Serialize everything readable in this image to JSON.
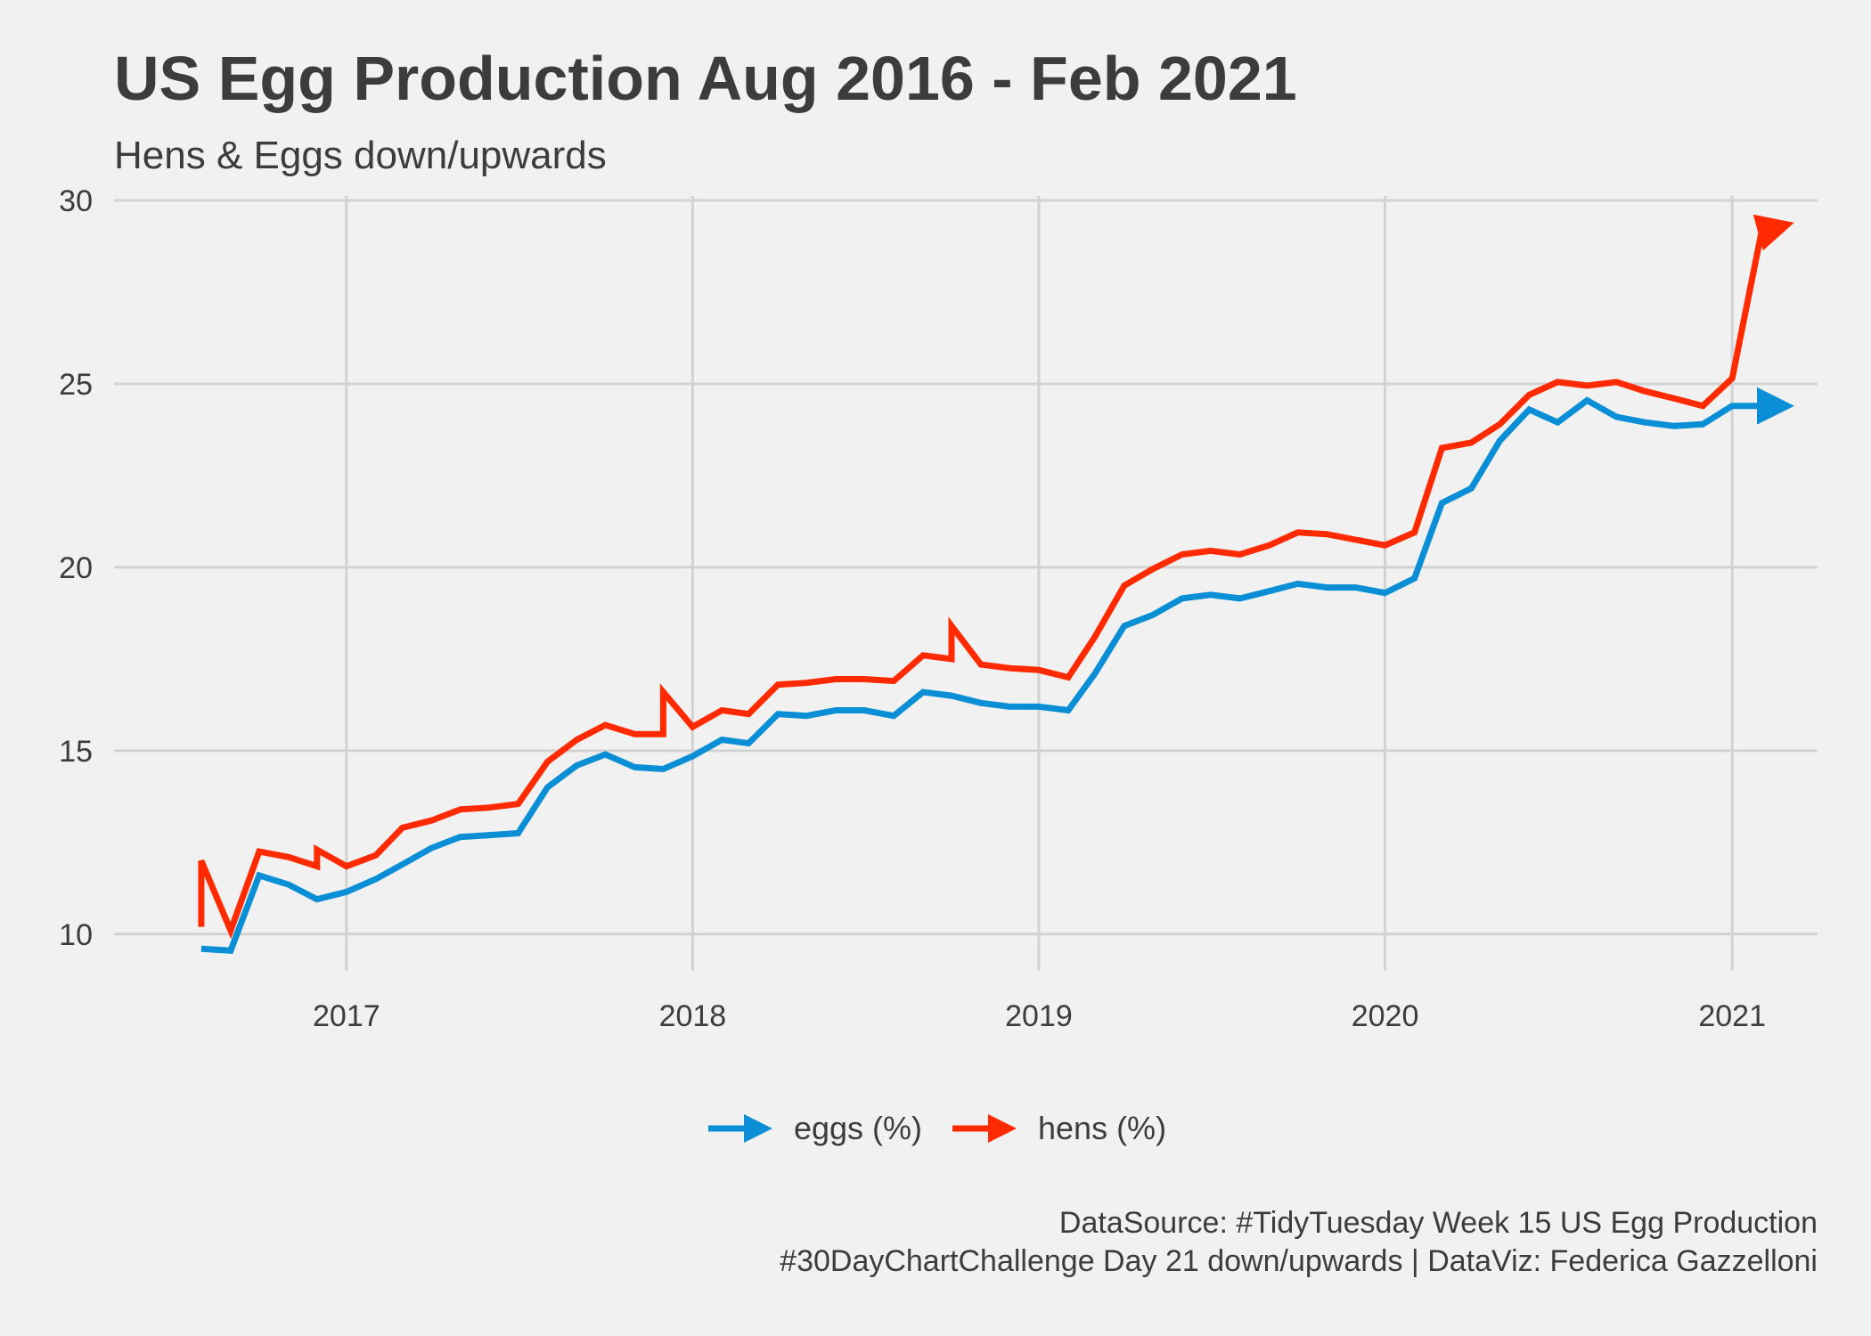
{
  "colors": {
    "eggs": "#0a8fd6",
    "hens": "#ff2a00",
    "grid": "#d2d2d2",
    "background": "#f1f1f1"
  },
  "chart_data": {
    "type": "line",
    "title": "US Egg Production Aug 2016 - Feb 2021",
    "subtitle": "Hens & Eggs down/upwards",
    "xlabel": "",
    "ylabel": "",
    "ylim": [
      9,
      30
    ],
    "yticks": [
      10,
      15,
      20,
      25,
      30
    ],
    "xlim": [
      "2016-05-01",
      "2021-04-01"
    ],
    "xticks": [
      "2017",
      "2018",
      "2019",
      "2020",
      "2021"
    ],
    "grid": true,
    "legend_position": "bottom",
    "series": [
      {
        "name": "eggs (%)",
        "color": "#0a8fd6",
        "arrow": "end",
        "points": [
          [
            "2016-08-01",
            9.6
          ],
          [
            "2016-09-01",
            9.55
          ],
          [
            "2016-10-01",
            11.6
          ],
          [
            "2016-11-01",
            11.35
          ],
          [
            "2016-12-01",
            10.95
          ],
          [
            "2017-01-01",
            11.15
          ],
          [
            "2017-02-01",
            11.5
          ],
          [
            "2017-03-01",
            11.9
          ],
          [
            "2017-04-01",
            12.35
          ],
          [
            "2017-05-01",
            12.65
          ],
          [
            "2017-06-01",
            12.7
          ],
          [
            "2017-07-01",
            12.75
          ],
          [
            "2017-08-01",
            14.0
          ],
          [
            "2017-09-01",
            14.6
          ],
          [
            "2017-10-01",
            14.9
          ],
          [
            "2017-11-01",
            14.55
          ],
          [
            "2017-12-01",
            14.5
          ],
          [
            "2018-01-01",
            14.85
          ],
          [
            "2018-02-01",
            15.3
          ],
          [
            "2018-03-01",
            15.2
          ],
          [
            "2018-04-01",
            16.0
          ],
          [
            "2018-05-01",
            15.95
          ],
          [
            "2018-06-01",
            16.1
          ],
          [
            "2018-07-01",
            16.1
          ],
          [
            "2018-08-01",
            15.95
          ],
          [
            "2018-09-01",
            16.6
          ],
          [
            "2018-10-01",
            16.5
          ],
          [
            "2018-11-01",
            16.3
          ],
          [
            "2018-12-01",
            16.2
          ],
          [
            "2019-01-01",
            16.2
          ],
          [
            "2019-02-01",
            16.1
          ],
          [
            "2019-03-01",
            17.1
          ],
          [
            "2019-04-01",
            18.4
          ],
          [
            "2019-05-01",
            18.7
          ],
          [
            "2019-06-01",
            19.15
          ],
          [
            "2019-07-01",
            19.25
          ],
          [
            "2019-08-01",
            19.15
          ],
          [
            "2019-09-01",
            19.35
          ],
          [
            "2019-10-01",
            19.55
          ],
          [
            "2019-11-01",
            19.45
          ],
          [
            "2019-12-01",
            19.45
          ],
          [
            "2020-01-01",
            19.3
          ],
          [
            "2020-02-01",
            19.7
          ],
          [
            "2020-03-01",
            21.75
          ],
          [
            "2020-04-01",
            22.15
          ],
          [
            "2020-05-01",
            23.45
          ],
          [
            "2020-06-01",
            24.3
          ],
          [
            "2020-07-01",
            23.95
          ],
          [
            "2020-08-01",
            24.55
          ],
          [
            "2020-09-01",
            24.1
          ],
          [
            "2020-10-01",
            23.95
          ],
          [
            "2020-11-01",
            23.85
          ],
          [
            "2020-12-01",
            23.9
          ],
          [
            "2021-01-01",
            24.4
          ],
          [
            "2021-02-01",
            24.4
          ],
          [
            "2021-03-01",
            24.4
          ]
        ]
      },
      {
        "name": "hens (%)",
        "color": "#ff2a00",
        "arrow": "end",
        "points": [
          [
            "2016-08-01",
            10.2
          ],
          [
            "2016-08-01",
            12.0
          ],
          [
            "2016-09-01",
            10.1
          ],
          [
            "2016-10-01",
            12.25
          ],
          [
            "2016-11-01",
            12.1
          ],
          [
            "2016-12-01",
            11.85
          ],
          [
            "2016-12-01",
            12.3
          ],
          [
            "2017-01-01",
            11.85
          ],
          [
            "2017-02-01",
            12.15
          ],
          [
            "2017-03-01",
            12.9
          ],
          [
            "2017-04-01",
            13.1
          ],
          [
            "2017-05-01",
            13.4
          ],
          [
            "2017-06-01",
            13.45
          ],
          [
            "2017-07-01",
            13.55
          ],
          [
            "2017-08-01",
            14.7
          ],
          [
            "2017-09-01",
            15.3
          ],
          [
            "2017-10-01",
            15.7
          ],
          [
            "2017-11-01",
            15.45
          ],
          [
            "2017-12-01",
            15.45
          ],
          [
            "2017-12-01",
            16.6
          ],
          [
            "2018-01-01",
            15.65
          ],
          [
            "2018-02-01",
            16.1
          ],
          [
            "2018-03-01",
            16.0
          ],
          [
            "2018-04-01",
            16.8
          ],
          [
            "2018-05-01",
            16.85
          ],
          [
            "2018-06-01",
            16.95
          ],
          [
            "2018-07-01",
            16.95
          ],
          [
            "2018-08-01",
            16.9
          ],
          [
            "2018-09-01",
            17.6
          ],
          [
            "2018-10-01",
            17.5
          ],
          [
            "2018-10-01",
            18.4
          ],
          [
            "2018-11-01",
            17.35
          ],
          [
            "2018-12-01",
            17.25
          ],
          [
            "2019-01-01",
            17.2
          ],
          [
            "2019-02-01",
            17.0
          ],
          [
            "2019-03-01",
            18.1
          ],
          [
            "2019-04-01",
            19.5
          ],
          [
            "2019-05-01",
            19.95
          ],
          [
            "2019-06-01",
            20.35
          ],
          [
            "2019-07-01",
            20.45
          ],
          [
            "2019-08-01",
            20.35
          ],
          [
            "2019-09-01",
            20.6
          ],
          [
            "2019-10-01",
            20.95
          ],
          [
            "2019-11-01",
            20.9
          ],
          [
            "2019-12-01",
            20.75
          ],
          [
            "2020-01-01",
            20.6
          ],
          [
            "2020-02-01",
            20.95
          ],
          [
            "2020-03-01",
            23.25
          ],
          [
            "2020-04-01",
            23.4
          ],
          [
            "2020-05-01",
            23.9
          ],
          [
            "2020-06-01",
            24.7
          ],
          [
            "2020-07-01",
            25.05
          ],
          [
            "2020-08-01",
            24.95
          ],
          [
            "2020-09-01",
            25.05
          ],
          [
            "2020-10-01",
            24.8
          ],
          [
            "2020-11-01",
            24.6
          ],
          [
            "2020-12-01",
            24.4
          ],
          [
            "2021-01-01",
            25.15
          ],
          [
            "2021-02-01",
            29.15
          ],
          [
            "2021-03-01",
            29.35
          ]
        ]
      }
    ]
  },
  "caption": {
    "line1": "DataSource: #TidyTuesday Week 15 US Egg Production",
    "line2": "#30DayChartChallenge Day 21 down/upwards | DataViz: Federica Gazzelloni"
  }
}
